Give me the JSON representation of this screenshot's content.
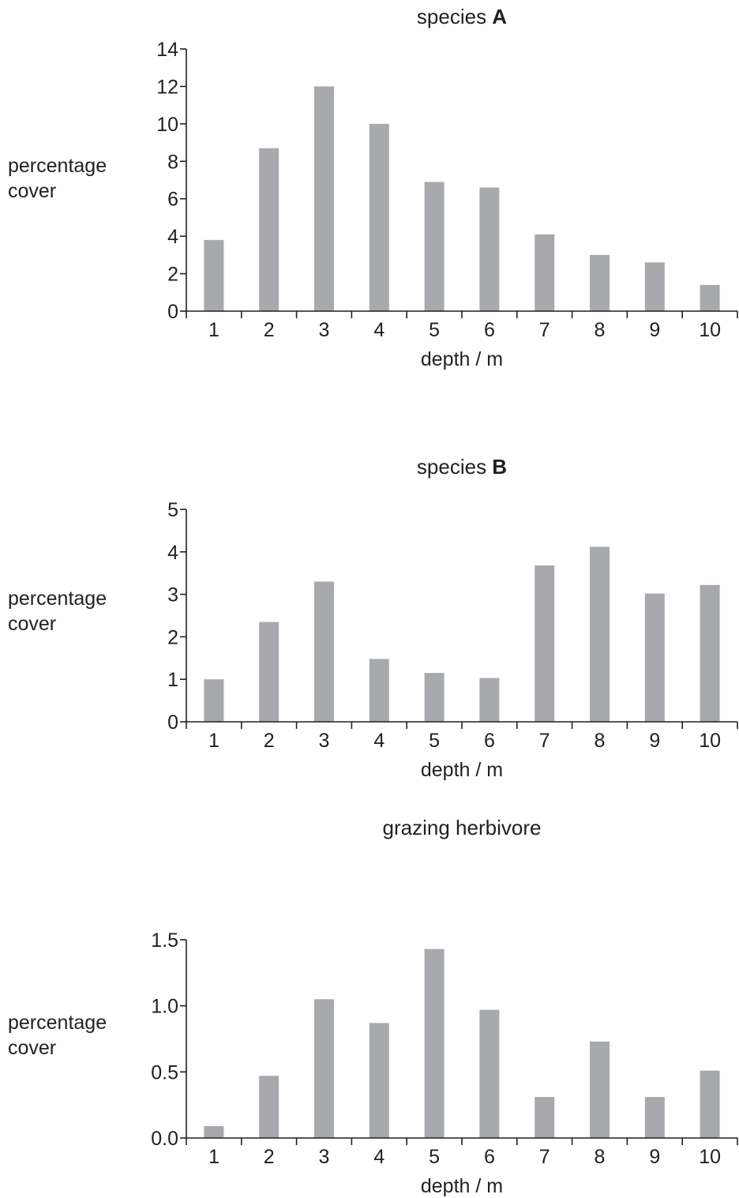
{
  "chart_data": [
    {
      "type": "bar",
      "title": "species A",
      "title_prefix": "species ",
      "title_bold": "A",
      "xlabel": "depth / m",
      "ylabel_lines": [
        "percentage",
        "cover"
      ],
      "categories": [
        "1",
        "2",
        "3",
        "4",
        "5",
        "6",
        "7",
        "8",
        "9",
        "10"
      ],
      "values": [
        3.8,
        8.7,
        12.0,
        10.0,
        6.9,
        6.6,
        4.1,
        3.0,
        2.6,
        1.4
      ],
      "ylim": [
        0,
        14
      ],
      "yticks": [
        "0",
        "2",
        "4",
        "6",
        "8",
        "10",
        "12",
        "14"
      ],
      "bar_color": "#a7a9ac"
    },
    {
      "type": "bar",
      "title": "species B",
      "title_prefix": "species ",
      "title_bold": "B",
      "xlabel": "depth / m",
      "ylabel_lines": [
        "percentage",
        "cover"
      ],
      "categories": [
        "1",
        "2",
        "3",
        "4",
        "5",
        "6",
        "7",
        "8",
        "9",
        "10"
      ],
      "values": [
        1.0,
        2.35,
        3.3,
        1.48,
        1.15,
        1.03,
        3.68,
        4.12,
        3.02,
        3.22
      ],
      "ylim": [
        0,
        5
      ],
      "yticks": [
        "0",
        "1",
        "2",
        "3",
        "4",
        "5"
      ],
      "bar_color": "#a7a9ac"
    },
    {
      "type": "bar",
      "title": "grazing herbivore",
      "title_prefix": "grazing herbivore",
      "title_bold": "",
      "xlabel": "depth / m",
      "ylabel_lines": [
        "percentage",
        "cover"
      ],
      "categories": [
        "1",
        "2",
        "3",
        "4",
        "5",
        "6",
        "7",
        "8",
        "9",
        "10"
      ],
      "values": [
        0.09,
        0.47,
        1.05,
        0.87,
        1.43,
        0.97,
        0.31,
        0.73,
        0.31,
        0.51
      ],
      "ylim": [
        0,
        1.5
      ],
      "yticks": [
        "0.0",
        "0.5",
        "1.0",
        "1.5"
      ],
      "bar_color": "#a7a9ac"
    }
  ]
}
